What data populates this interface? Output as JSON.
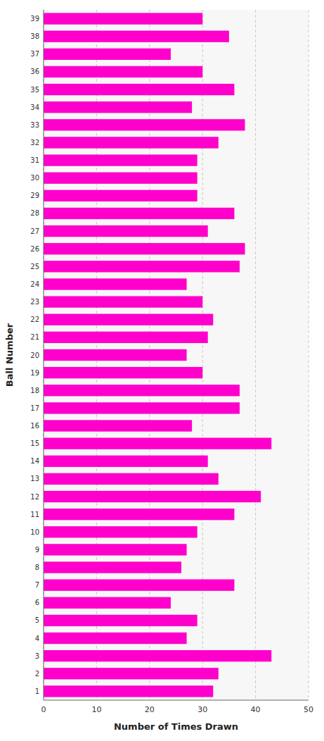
{
  "chart_data": {
    "type": "bar",
    "orientation": "horizontal",
    "xlabel": "Number of Times Drawn",
    "ylabel": "Ball Number",
    "categories": [
      "1",
      "2",
      "3",
      "4",
      "5",
      "6",
      "7",
      "8",
      "9",
      "10",
      "11",
      "12",
      "13",
      "14",
      "15",
      "16",
      "17",
      "18",
      "19",
      "20",
      "21",
      "22",
      "23",
      "24",
      "25",
      "26",
      "27",
      "28",
      "29",
      "30",
      "31",
      "32",
      "33",
      "34",
      "35",
      "36",
      "37",
      "38",
      "39"
    ],
    "values": [
      32,
      33,
      43,
      27,
      29,
      24,
      36,
      26,
      27,
      29,
      36,
      41,
      33,
      31,
      43,
      28,
      37,
      37,
      30,
      27,
      31,
      32,
      30,
      27,
      37,
      38,
      31,
      36,
      29,
      29,
      29,
      33,
      38,
      28,
      36,
      30,
      24,
      35,
      30
    ],
    "color": "#FF00CC",
    "xlim": [
      0,
      50
    ],
    "xticks": [
      0,
      10,
      20,
      30,
      40,
      50
    ],
    "grid": true
  }
}
